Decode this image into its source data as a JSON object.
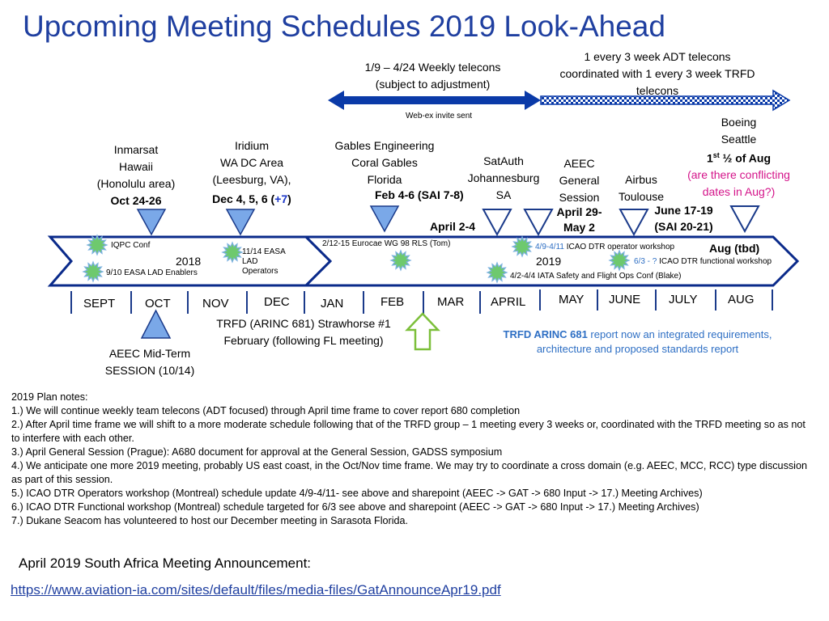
{
  "title": "Upcoming Meeting Schedules 2019 Look-Ahead",
  "telecons": {
    "weekly_line1": "1/9 – 4/24 Weekly telecons",
    "weekly_line2": "(subject to adjustment)",
    "adt_line1": "1 every 3 week ADT telecons",
    "adt_line2": "coordinated with 1 every 3 week TRFD",
    "adt_line3": "telecons",
    "webex": "Web-ex invite sent"
  },
  "meetings": {
    "inmarsat": {
      "l1": "Inmarsat",
      "l2": "Hawaii",
      "l3": "(Honolulu area)",
      "date": "Oct 24-26"
    },
    "iridium": {
      "l1": "Iridium",
      "l2": "WA DC Area",
      "l3": "(Leesburg, VA),",
      "date_prefix": "Dec 4, 5, 6 (",
      "date_plus": "+7",
      "date_suffix": ")"
    },
    "gables": {
      "l1": "Gables Engineering",
      "l2": "Coral Gables",
      "l3": "Florida",
      "date": "Feb 4-6 (SAI 7-8)"
    },
    "satauth": {
      "l1": "SatAuth",
      "l2": "Johannesburg",
      "l3": "SA",
      "date": "April 2-4"
    },
    "aeec": {
      "l1": "AEEC",
      "l2": "General",
      "l3": "Session",
      "date1": "April 29-",
      "date2": "May 2"
    },
    "airbus": {
      "l1": "Airbus",
      "l2": "Toulouse",
      "date1": "June 17-19",
      "date2": "(SAI 20-21)"
    },
    "boeing": {
      "l1": "Boeing",
      "l2": "Seattle",
      "l3_num": "1",
      "l3_sup": "st",
      "l3_rest": " ½ of Aug",
      "l4": "(are there conflicting",
      "l5": "dates in Aug?)",
      "date": "Aug (tbd)"
    }
  },
  "timeline": {
    "year_2018": "2018",
    "year_2019": "2019",
    "months": [
      "SEPT",
      "OCT",
      "NOV",
      "DEC",
      "JAN",
      "FEB",
      "MAR",
      "APRIL",
      "MAY",
      "JUNE",
      "JULY",
      "AUG"
    ]
  },
  "events": {
    "iqpc": "IQPC Conf",
    "easa_lad": "9/10 EASA LAD Enablers",
    "easa_ops_1": "11/14 EASA",
    "easa_ops_2": "LAD",
    "easa_ops_3": "Operators",
    "eurocae": "2/12-15  Eurocae WG 98 RLS (Tom)",
    "dtr_ops_date": "4/9-4/11",
    "dtr_ops_text": " ICAO DTR operator workshop",
    "dtr_func_date": "6/3 - ?",
    "dtr_func_text": " ICAO DTR functional workshop",
    "iata": "4/2-4/4 IATA Safety and Flight Ops Conf (Blake)"
  },
  "below": {
    "aeec_midterm_1": "AEEC Mid-Term",
    "aeec_midterm_2": "SESSION (10/14)",
    "trfd_1": "TRFD (ARINC 681) Strawhorse #1",
    "trfd_2": "February  (following FL meeting)",
    "trfd_note_bold": "TRFD ARINC 681",
    "trfd_note_rest": " report now an integrated requirements,",
    "trfd_note_2": "architecture and proposed standards report"
  },
  "notes": {
    "heading": "2019 Plan notes:",
    "items": [
      "1.) We will continue weekly team telecons (ADT focused) through April time frame to cover report 680 completion",
      "2.) After April time frame we will shift to a more moderate schedule following that of the TRFD group – 1 meeting every 3 weeks or, coordinated with the TRFD meeting so as not to interfere with each other.",
      "3.) April General Session (Prague): A680 document for approval at the General Session, GADSS symposium",
      "4.) We anticipate one more 2019 meeting, probably US east coast,  in the Oct/Nov time frame. We may try to coordinate a cross domain (e.g. AEEC, MCC, RCC) type discussion as part of this session.",
      "5.) ICAO DTR Operators workshop (Montreal) schedule update 4/9-4/11- see above and sharepoint (AEEC -> GAT -> 680 Input -> 17.) Meeting Archives)",
      "6.) ICAO DTR Functional workshop (Montreal) schedule targeted for 6/3 see above and sharepoint (AEEC -> GAT -> 680 Input -> 17.) Meeting Archives)",
      "7.) Dukane Seacom has volunteered to host our December meeting in Sarasota Florida."
    ]
  },
  "announcement": {
    "label": "April 2019 South Africa Meeting Announcement:",
    "url": "https://www.aviation-ia.com/sites/default/files/media-files/GatAnnounceApr19.pdf"
  },
  "colors": {
    "title": "#1f3fa0",
    "arrow_blue": "#0a3aa8",
    "triangle_fill": "#7aa8e8",
    "triangle_stroke": "#1a3a8a",
    "starburst_fill": "#6ec96e",
    "starburst_stroke": "#7ab0e0",
    "up_arrow": "#7cbf3a"
  }
}
